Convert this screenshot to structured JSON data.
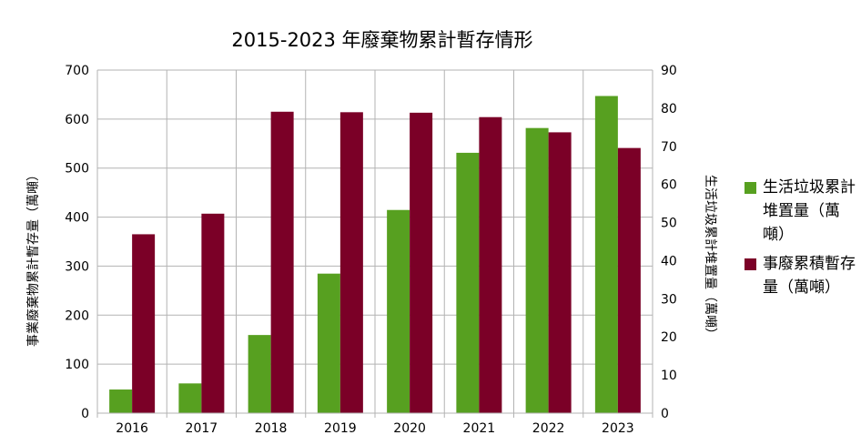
{
  "chart_data": {
    "type": "bar",
    "title": "2015-2023 年廢棄物累計暫存情形",
    "categories": [
      "2016",
      "2017",
      "2018",
      "2019",
      "2020",
      "2021",
      "2022",
      "2023"
    ],
    "series": [
      {
        "name": "生活垃圾累計堆置量（萬噸）",
        "axis": "right",
        "color": "#57a020",
        "values": [
          6.2,
          7.8,
          20.5,
          36.6,
          53.3,
          68.3,
          74.8,
          83.2
        ]
      },
      {
        "name": "事廢累積暫存量（萬噸）",
        "axis": "left",
        "color": "#7b0027",
        "values": [
          365,
          407,
          615,
          614,
          613,
          604,
          573,
          541
        ]
      }
    ],
    "ylabel_left": "事業廢棄物累計暫存量（萬噸）",
    "ylabel_right": "生活垃圾累計堆置量（萬噸）",
    "ylim_left": [
      0,
      700
    ],
    "ylim_right": [
      0,
      90
    ],
    "yticks_left": [
      "0",
      "100",
      "200",
      "300",
      "400",
      "500",
      "600",
      "700"
    ],
    "yticks_right": [
      "0",
      "10",
      "20",
      "30",
      "40",
      "50",
      "60",
      "70",
      "80",
      "90"
    ],
    "grid": true,
    "legend_position": "right"
  }
}
